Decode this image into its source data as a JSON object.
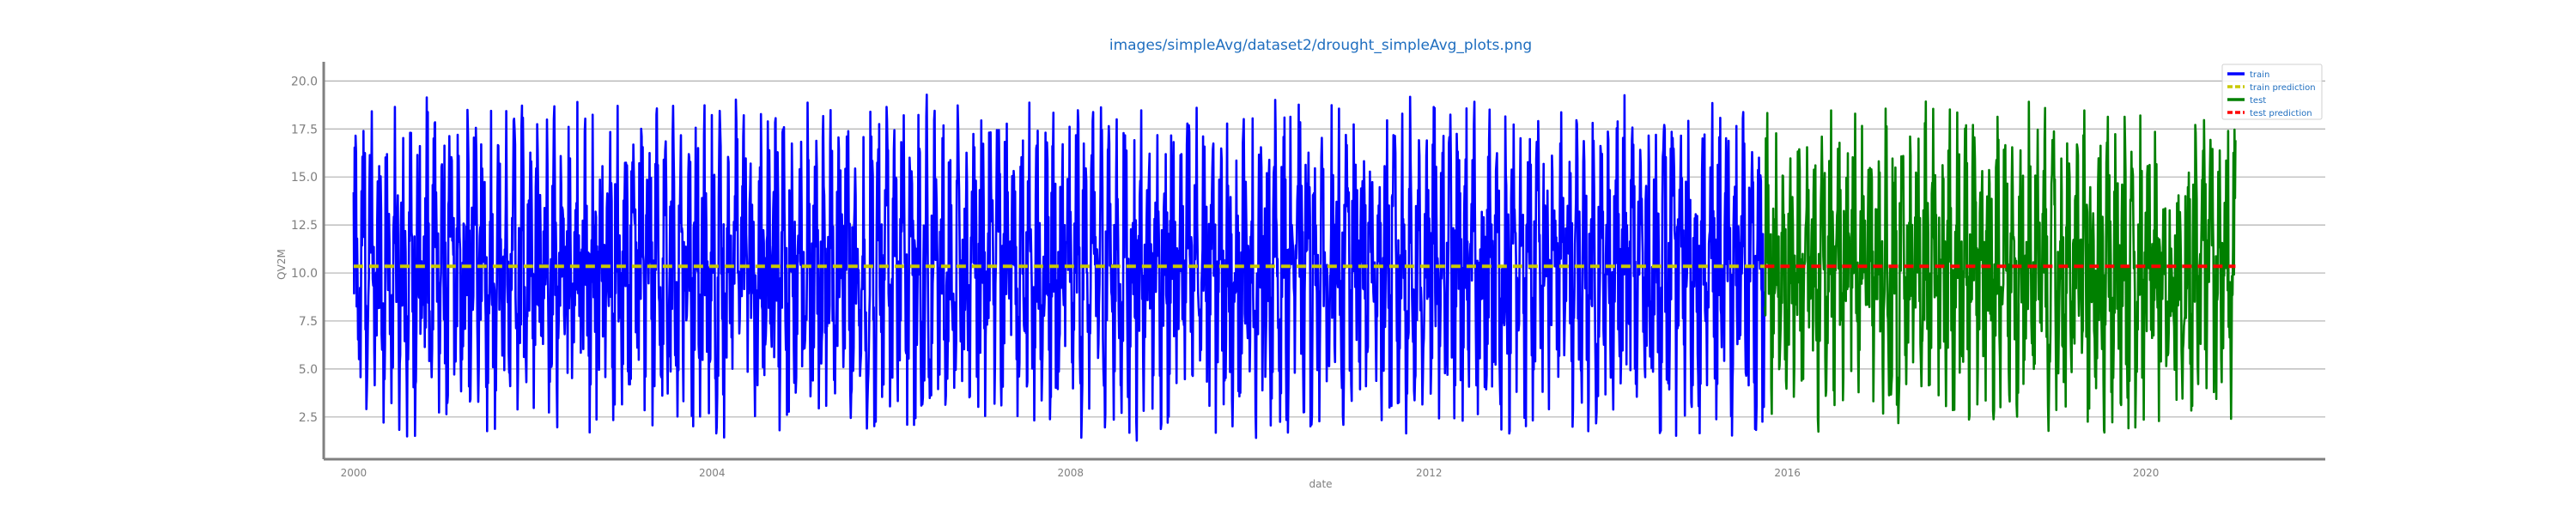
{
  "chart_data": {
    "type": "line",
    "title": "images/simpleAvg/dataset2/drought_simpleAvg_plots.png",
    "xlabel": "date",
    "ylabel": "QV2M",
    "x_range": [
      "1999-09-01",
      "2022-01-01"
    ],
    "ylim": [
      0.3,
      21.0
    ],
    "x_ticks": [
      "2000",
      "2004",
      "2008",
      "2012",
      "2016",
      "2020"
    ],
    "y_ticks": [
      "2.5",
      "5.0",
      "7.5",
      "10.0",
      "12.5",
      "15.0",
      "17.5",
      "20.0"
    ],
    "grid": "horizontal",
    "legend_position": "top-right",
    "series": [
      {
        "name": "train",
        "color": "#0000ff",
        "style": "solid",
        "x_start": "2000-01-01",
        "x_end": "2015-09-30",
        "mean": 10.3,
        "amplitude": 6.7,
        "min_observed": 1.2,
        "max_observed": 19.7
      },
      {
        "name": "train prediction",
        "color": "#c8c800",
        "style": "dashed",
        "x": [
          "2000-01-01",
          "2015-09-30"
        ],
        "y": [
          10.35,
          10.35
        ]
      },
      {
        "name": "test",
        "color": "#008000",
        "style": "solid",
        "x_start": "2015-10-01",
        "x_end": "2020-12-31",
        "mean": 10.2,
        "amplitude": 6.5,
        "min_observed": 1.4,
        "max_observed": 19.3
      },
      {
        "name": "test prediction",
        "color": "#ff0000",
        "style": "dashed",
        "x": [
          "2015-10-01",
          "2020-12-31"
        ],
        "y": [
          10.35,
          10.35
        ]
      }
    ]
  },
  "colors": {
    "title": "#1f6ebf",
    "tick_label": "#7f7f7f",
    "axis": "#808080",
    "grid": "#b0b0b0",
    "legend_text": "#1f6ebf"
  }
}
